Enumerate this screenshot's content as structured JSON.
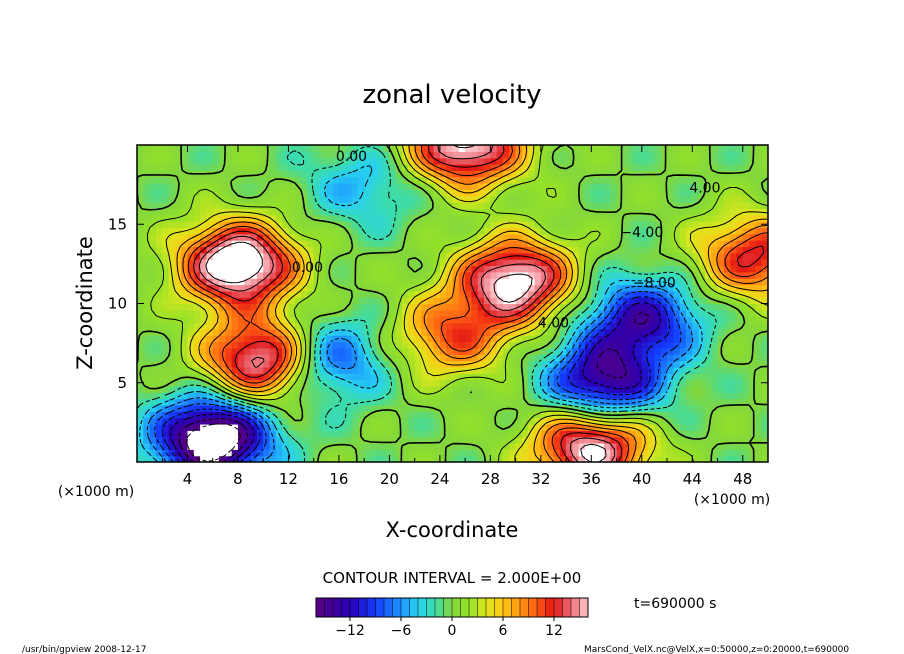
{
  "chart_data": {
    "type": "heatmap",
    "title": "zonal velocity",
    "xlabel": "X-coordinate",
    "ylabel": "Z-coordinate",
    "x_unit": "(×1000 m)",
    "y_unit": "(×1000 m)",
    "xlim": [
      0,
      50
    ],
    "ylim": [
      0,
      20
    ],
    "x_ticks": [
      "4",
      "8",
      "12",
      "16",
      "20",
      "24",
      "28",
      "32",
      "36",
      "40",
      "44",
      "48"
    ],
    "y_ticks": [
      "5",
      "10",
      "15"
    ],
    "contour_interval_label": "CONTOUR INTERVAL = 2.000E+00",
    "time_label": "t=690000 s",
    "colorbar_ticks": [
      "−12",
      "−6",
      "0",
      "6",
      "12"
    ],
    "colorbar_range": [
      -16,
      16
    ],
    "contour_labels": [
      "0.00",
      "4.00",
      "−4.00",
      "−8.00",
      "0.00",
      "4.00"
    ],
    "colors": {
      "negative_extreme": "#4b0082",
      "negative": "#1e3cff",
      "zero": "#7cd43a",
      "positive": "#ffb020",
      "positive_extreme": "#e00000"
    },
    "features": [
      {
        "x": 8,
        "z": 12.5,
        "value": 16,
        "note": "strong positive (saturated)"
      },
      {
        "x": 10,
        "z": 6.5,
        "value": 14
      },
      {
        "x": 6,
        "z": 1.5,
        "value": -16,
        "note": "strong negative (saturated)"
      },
      {
        "x": 37,
        "z": 5,
        "value": -12
      },
      {
        "x": 40,
        "z": 9,
        "value": -10
      },
      {
        "x": 30,
        "z": 11.5,
        "value": 14
      },
      {
        "x": 25,
        "z": 8,
        "value": 8
      },
      {
        "x": 49,
        "z": 13,
        "value": 10
      },
      {
        "x": 36,
        "z": 1,
        "value": 14
      },
      {
        "x": 18,
        "z": 17.5,
        "value": -4
      },
      {
        "x": 15,
        "z": 6.5,
        "value": -8
      },
      {
        "x": 26,
        "z": 20,
        "value": 14
      }
    ]
  },
  "footer": {
    "left": "/usr/bin/gpview   2008-12-17",
    "right": "MarsCond_VelX.nc@VelX,x=0:50000,z=0:20000,t=690000"
  }
}
